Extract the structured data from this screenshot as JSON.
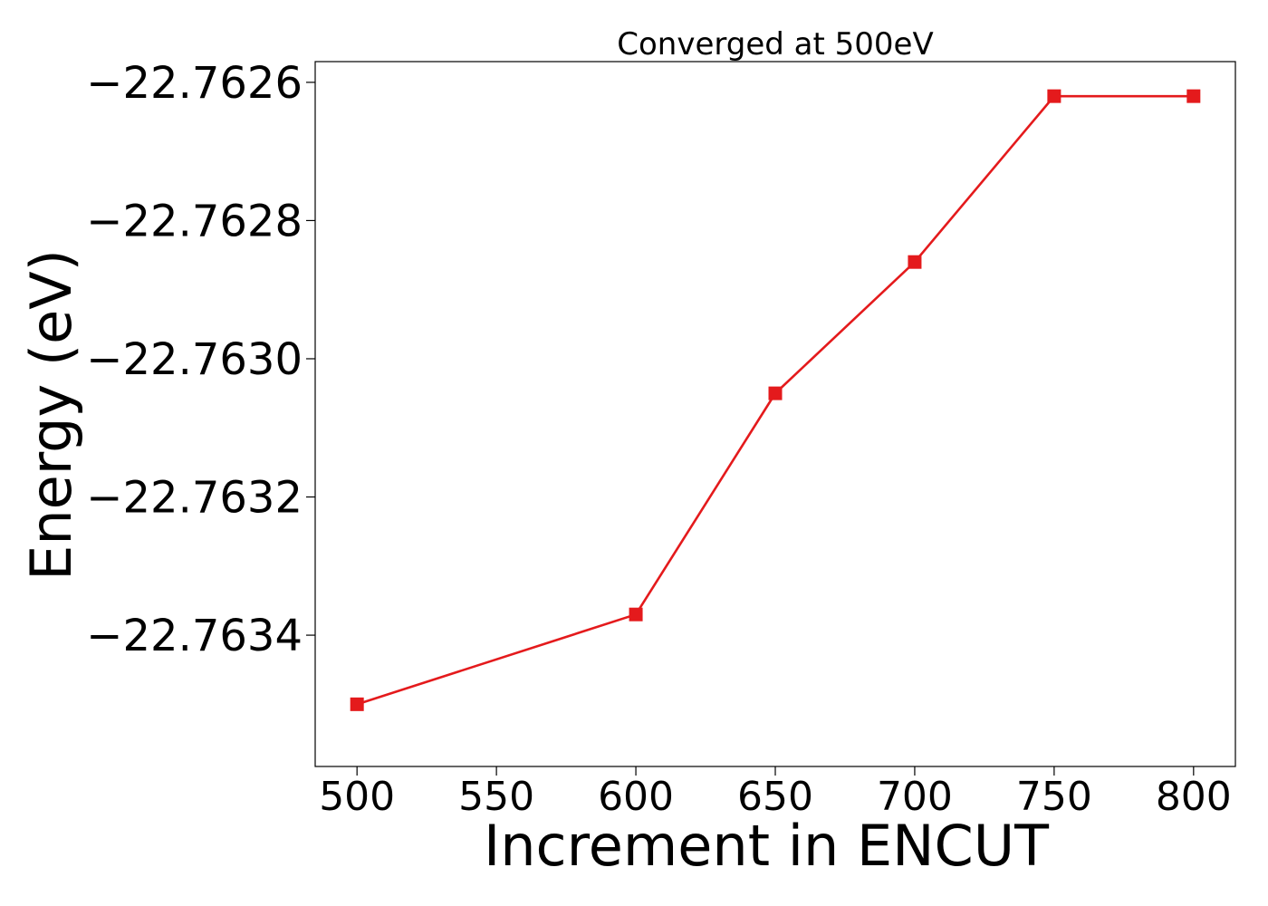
{
  "chart_data": {
    "type": "line",
    "title": "Converged at 500eV",
    "xlabel": "Increment in ENCUT",
    "ylabel": "Energy (eV)",
    "x": [
      500,
      600,
      650,
      700,
      750,
      800
    ],
    "series": [
      {
        "values": [
          -22.7635,
          -22.76337,
          -22.76305,
          -22.76286,
          -22.76262,
          -22.76262
        ],
        "color": "#e41a1c",
        "marker": "square"
      }
    ],
    "xlim": [
      485,
      815
    ],
    "ylim": [
      -22.76359,
      -22.76257
    ],
    "x_ticks": [
      500,
      550,
      600,
      650,
      700,
      750,
      800
    ],
    "x_tick_labels": [
      "500",
      "550",
      "600",
      "650",
      "700",
      "750",
      "800"
    ],
    "y_ticks": [
      -22.7634,
      -22.7632,
      -22.763,
      -22.7628,
      -22.7626
    ],
    "y_tick_labels": [
      "−22.7634",
      "−22.7632",
      "−22.7630",
      "−22.7628",
      "−22.7626"
    ],
    "grid": false,
    "legend": "none"
  }
}
